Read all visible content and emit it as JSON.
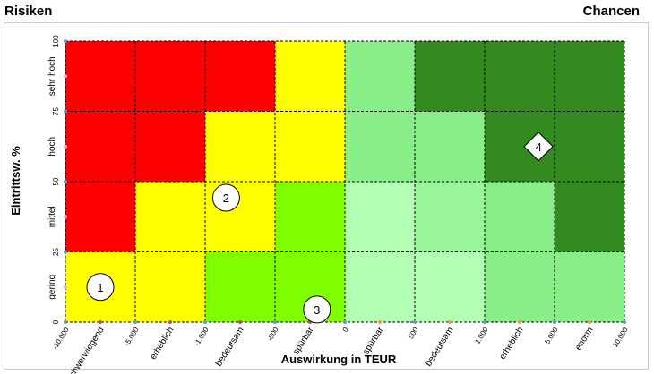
{
  "header": {
    "left_title": "Risiken",
    "right_title": "Chancen"
  },
  "chart_data": {
    "type": "heatmap",
    "xlabel": "Auswirkung in TEUR",
    "ylabel": "Eintrittsw. %",
    "x_ticks": [
      "-10.000",
      "-5.000",
      "-1.000",
      "-500",
      "0",
      "500",
      "1.000",
      "5.000",
      "10.000"
    ],
    "x_categories": [
      "schwerwiegend",
      "erheblich",
      "bedeutsam",
      "spürbar",
      "spürbar",
      "bedeutsam",
      "erheblich",
      "enorm"
    ],
    "y_ticks": [
      "0",
      "25",
      "50",
      "75",
      "100"
    ],
    "y_categories": [
      "gering",
      "mittel",
      "hoch",
      "sehr hoch"
    ],
    "ylim": [
      0,
      100
    ],
    "cell_colors": [
      [
        "#ffff00",
        "#ffff00",
        "#80ff00",
        "#80ff00",
        "#b3ffb3",
        "#b3ffb3",
        "#88ee88",
        "#88ee88"
      ],
      [
        "#ff0000",
        "#ffff00",
        "#ffff00",
        "#80ff00",
        "#b3ffb3",
        "#99f599",
        "#88ee88",
        "#338a1f"
      ],
      [
        "#ff0000",
        "#ff0000",
        "#ffff00",
        "#ffff00",
        "#88ee88",
        "#88ee88",
        "#338a1f",
        "#338a1f"
      ],
      [
        "#ff0000",
        "#ff0000",
        "#ff0000",
        "#ffff00",
        "#88ee88",
        "#338a1f",
        "#338a1f",
        "#338a1f"
      ]
    ],
    "markers": [
      {
        "label": "1",
        "shape": "circle",
        "x": 0.5,
        "y": 0.5
      },
      {
        "label": "2",
        "shape": "circle",
        "x": 2.3,
        "y": 1.77
      },
      {
        "label": "3",
        "shape": "circle",
        "x": 3.6,
        "y": 0.18
      },
      {
        "label": "4",
        "shape": "diamond",
        "x": 6.77,
        "y": 2.5
      }
    ],
    "grid": true
  }
}
